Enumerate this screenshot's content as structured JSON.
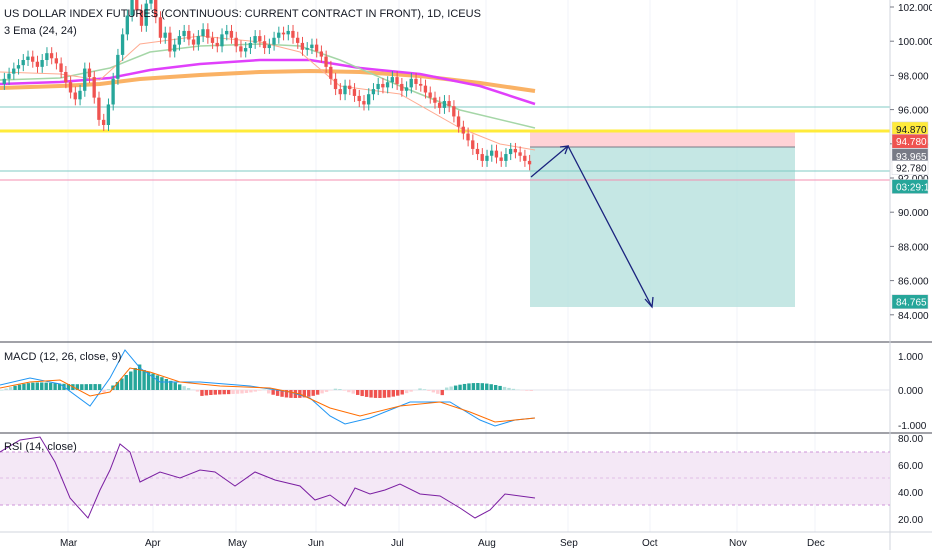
{
  "header": {
    "symbol": "US DOLLAR INDEX FUTURES (CONTINUOUS: CURRENT CONTRACT IN FRONT), 1D, ICEUS",
    "ema_label": "3 Ema (24, 24)"
  },
  "macd_label": "MACD (12, 26, close, 9)",
  "rsi_label": "RSI (14, close)",
  "colors": {
    "up": "#26a69a",
    "down": "#ef5350",
    "ema1": "#f7a35c",
    "ema2": "#a5d6a7",
    "ema3": "#e040fb",
    "ema4": "#f9a44a",
    "yellow": "#ffeb3b",
    "target_zone": "#b2dfdb",
    "stop_zone": "#ffcdd2",
    "arrow": "#1a237e",
    "rsi_bg": "#f3e5f5",
    "rsi_line": "#7b1fa2",
    "macd_line": "#2196f3",
    "signal_line": "#ff6d00"
  },
  "x_axis": [
    "Mar",
    "Apr",
    "May",
    "Jun",
    "Jul",
    "Aug",
    "Sep",
    "Oct",
    "Nov",
    "Dec"
  ],
  "price_axis": [
    "102.000",
    "100.000",
    "98.000",
    "96.000",
    "94.000",
    "92.000",
    "90.000",
    "88.000",
    "86.000",
    "84.000"
  ],
  "price_tags": [
    {
      "label": "94.870",
      "bg": "#ffeb3b",
      "fg": "#131722",
      "price": 94.87
    },
    {
      "label": "94.780",
      "bg": "#ef5350",
      "fg": "#ffffff",
      "price": 94.15
    },
    {
      "label": "93.965",
      "bg": "#787b86",
      "fg": "#ffffff",
      "price": 93.3
    },
    {
      "label": "92.780",
      "bg": "#ffffff",
      "fg": "#131722",
      "price": 92.6
    },
    {
      "label": "03:29:17",
      "bg": "#26a69a",
      "fg": "#ffffff",
      "price": 91.5
    },
    {
      "label": "84.765",
      "bg": "#26a69a",
      "fg": "#ffffff",
      "price": 84.765
    }
  ],
  "macd_axis": [
    "1.000",
    "0.000",
    "-1.000"
  ],
  "rsi_axis": [
    "80.00",
    "60.00",
    "40.00",
    "20.00"
  ],
  "chart_data": {
    "type": "candlestick",
    "price_range": [
      83.2,
      103
    ],
    "candles_close": [
      97.8,
      98.1,
      98.4,
      98.6,
      98.9,
      99.1,
      98.8,
      98.5,
      98.9,
      99.3,
      99.0,
      98.7,
      98.2,
      97.6,
      97.0,
      96.6,
      97.1,
      98.4,
      97.9,
      96.7,
      95.4,
      95.1,
      96.3,
      97.8,
      99.2,
      100.4,
      101.5,
      102.6,
      101.8,
      100.9,
      102.2,
      102.7,
      101.4,
      100.2,
      100.5,
      99.4,
      99.8,
      100.3,
      100.6,
      100.1,
      99.8,
      100.3,
      100.7,
      100.2,
      99.9,
      99.7,
      100.4,
      100.6,
      100.2,
      99.7,
      99.4,
      99.6,
      99.9,
      100.3,
      100.0,
      99.6,
      99.8,
      100.2,
      100.5,
      100.4,
      100.6,
      100.2,
      99.9,
      99.5,
      99.6,
      99.8,
      99.4,
      99.1,
      98.5,
      97.8,
      97.2,
      96.9,
      97.4,
      97.2,
      96.8,
      96.5,
      96.3,
      96.9,
      97.2,
      97.5,
      97.3,
      97.6,
      97.9,
      97.5,
      97.1,
      97.3,
      97.8,
      97.5,
      97.4,
      97.0,
      96.7,
      96.4,
      96.1,
      96.5,
      96.2,
      95.6,
      95.0,
      94.6,
      94.2,
      93.7,
      93.4,
      93.0,
      93.3,
      93.6,
      93.2,
      93.0,
      93.4,
      93.7,
      93.5,
      93.3,
      93.0,
      92.8
    ]
  }
}
